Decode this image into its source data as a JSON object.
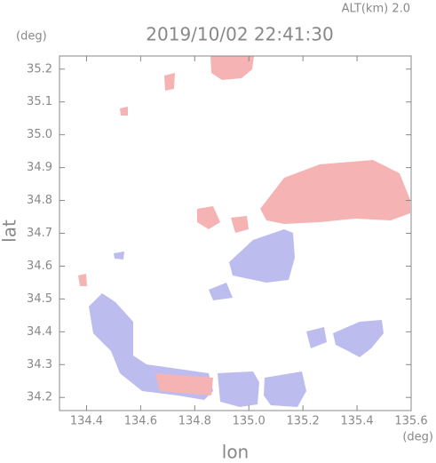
{
  "chart_data": {
    "type": "map",
    "title": "2019/10/02 22:41:30",
    "subtitle": "ALT(km) 2.0",
    "x_label": "lon",
    "y_label": "lat",
    "x_unit": "(deg)",
    "y_unit": "(deg)",
    "xlim": [
      134.3,
      135.6
    ],
    "xticks": [
      134.4,
      134.6,
      134.8,
      {
        "value": 135.0,
        "label": "135.0"
      },
      135.2,
      135.4,
      135.6
    ],
    "ylim": [
      34.16,
      35.24
    ],
    "yticks": [
      34.2,
      34.3,
      34.4,
      34.5,
      34.6,
      34.7,
      34.8,
      34.9,
      {
        "value": 35.0,
        "label": "35.0"
      },
      35.1,
      35.2
    ]
  }
}
